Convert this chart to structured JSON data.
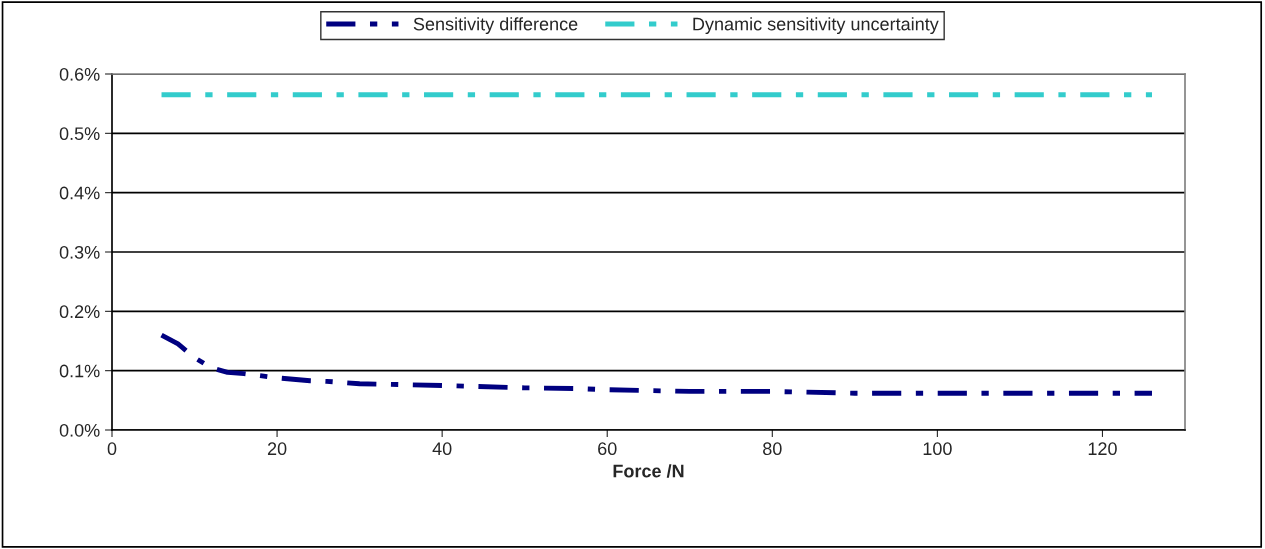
{
  "chart_data": {
    "type": "line",
    "xlabel": "Force /N",
    "xlim": [
      0,
      130
    ],
    "xticks": [
      0,
      20,
      40,
      60,
      80,
      100,
      120
    ],
    "ylim": [
      0,
      0.6
    ],
    "yticks": [
      {
        "value": 0,
        "label": "0.0%"
      },
      {
        "value": 0.1,
        "label": "0.1%"
      },
      {
        "value": 0.2,
        "label": "0.2%"
      },
      {
        "value": 0.3,
        "label": "0.3%"
      },
      {
        "value": 0.4,
        "label": "0.4%"
      },
      {
        "value": 0.5,
        "label": "0.5%"
      },
      {
        "value": 0.6,
        "label": "0.6%"
      }
    ],
    "grid": "y",
    "legend": "top",
    "line_style": "dashdot",
    "series": [
      {
        "name": "Sensitivity difference",
        "color": "#000080",
        "x": [
          6,
          8,
          10,
          12,
          14,
          16,
          20,
          24,
          26,
          30,
          40,
          50,
          56,
          60,
          70,
          80,
          90,
          100,
          110,
          126
        ],
        "values": [
          0.16,
          0.145,
          0.122,
          0.105,
          0.097,
          0.095,
          0.088,
          0.083,
          0.082,
          0.078,
          0.075,
          0.071,
          0.07,
          0.068,
          0.065,
          0.065,
          0.062,
          0.062,
          0.062,
          0.062
        ]
      },
      {
        "name": "Dynamic sensitivity uncertainty",
        "color": "#33cccc",
        "x": [
          6,
          126
        ],
        "values": [
          0.565,
          0.565
        ]
      }
    ]
  }
}
